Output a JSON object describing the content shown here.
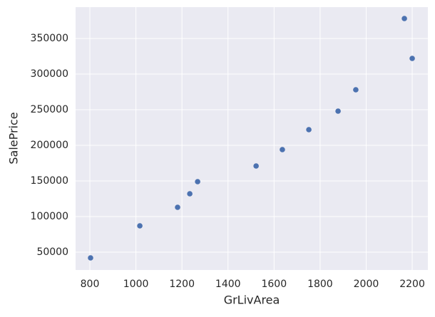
{
  "chart_data": {
    "type": "scatter",
    "x_label": "GrLivArea",
    "y_label": "SalePrice",
    "series": [
      {
        "color": "#4c72b0",
        "x": [
          803,
          1017,
          1181,
          1234,
          1268,
          1522,
          1636,
          1751,
          1878,
          1955,
          2166,
          2200
        ],
        "values": [
          42000,
          87000,
          113000,
          132000,
          149000,
          171000,
          194000,
          222000,
          248000,
          278000,
          378000,
          322000
        ]
      }
    ],
    "xlim": [
      738,
      2268
    ],
    "xticks": [
      800,
      1000,
      1200,
      1400,
      1600,
      1800,
      2000,
      2200
    ],
    "ylim": [
      25000,
      394000
    ],
    "yticks": [
      50000,
      100000,
      150000,
      200000,
      250000,
      300000,
      350000
    ],
    "grid": true
  }
}
